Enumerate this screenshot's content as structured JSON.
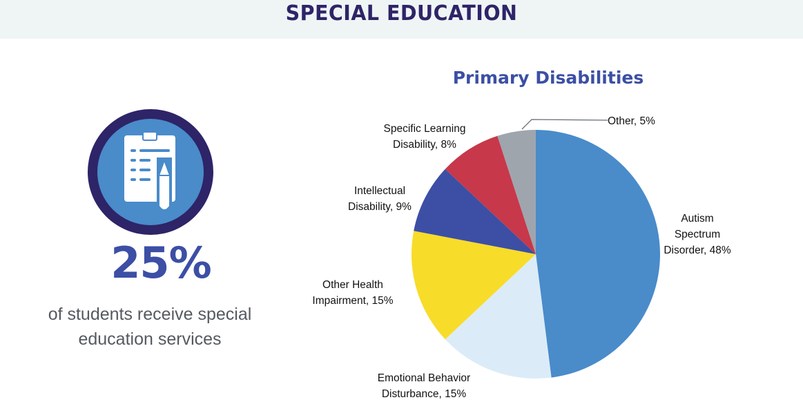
{
  "header": {
    "title": "SPECIAL EDUCATION",
    "background": "#eff5f5",
    "color": "#2e2468"
  },
  "stat": {
    "icon": "clipboard-pencil-icon",
    "value": "25%",
    "description_line1": "of students receive special",
    "description_line2": "education services",
    "ring_color": "#2e2468",
    "fill_color": "#4a8bca"
  },
  "chart": {
    "title": "Primary Disabilities",
    "labels": [
      {
        "line1": "Autism",
        "line2": "Spectrum",
        "line3": "Disorder, 48%"
      },
      {
        "line1": "Emotional Behavior",
        "line2": "Disturbance, 15%"
      },
      {
        "line1": "Other Health",
        "line2": "Impairment, 15%"
      },
      {
        "line1": "Intellectual",
        "line2": "Disability, 9%"
      },
      {
        "line1": "Specific Learning",
        "line2": "Disability, 8%"
      },
      {
        "line1": "Other, 5%"
      }
    ]
  },
  "chart_data": {
    "type": "pie",
    "title": "Primary Disabilities",
    "categories": [
      "Autism Spectrum Disorder",
      "Emotional Behavior Disturbance",
      "Other Health Impairment",
      "Intellectual Disability",
      "Specific Learning Disability",
      "Other"
    ],
    "values": [
      48,
      15,
      15,
      9,
      8,
      5
    ],
    "unit": "%",
    "colors": [
      "#4a8bca",
      "#dbecf8",
      "#f8dc2a",
      "#3c4fa5",
      "#c7384a",
      "#9fa5ad"
    ],
    "start_angle": "12 o'clock",
    "direction": "clockwise",
    "data_labels": "category, percent (outside)",
    "legend": "none"
  }
}
